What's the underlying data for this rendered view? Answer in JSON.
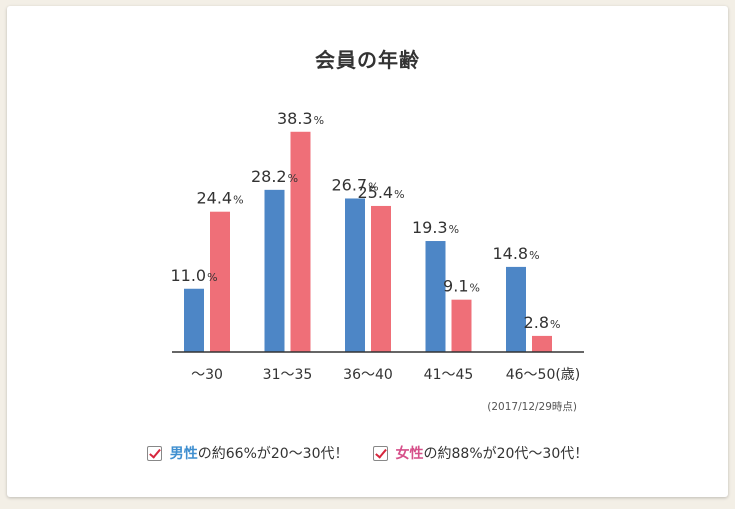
{
  "chart_data": {
    "type": "bar",
    "title": "会員の年齢",
    "categories": [
      "〜30",
      "31〜35",
      "36〜40",
      "41〜45",
      "46〜50(歳)"
    ],
    "series": [
      {
        "name": "男性",
        "color": "#4d86c6",
        "values": [
          11.0,
          28.2,
          26.7,
          19.3,
          14.8
        ],
        "labels": [
          "11.0",
          "28.2",
          "26.7",
          "19.3",
          "14.8"
        ]
      },
      {
        "name": "女性",
        "color": "#ef6f78",
        "values": [
          24.4,
          38.3,
          25.4,
          9.1,
          2.8
        ],
        "labels": [
          "24.4",
          "38.3",
          "25.4",
          "9.1",
          "2.8"
        ]
      }
    ],
    "unit": "%",
    "ylim": [
      0,
      40
    ],
    "source_note": "(2017/12/29時点)"
  },
  "notes": [
    {
      "keyword": "男性",
      "text": "の約66%が20〜30代！"
    },
    {
      "keyword": "女性",
      "text": "の約88%が20代〜30代！"
    }
  ]
}
